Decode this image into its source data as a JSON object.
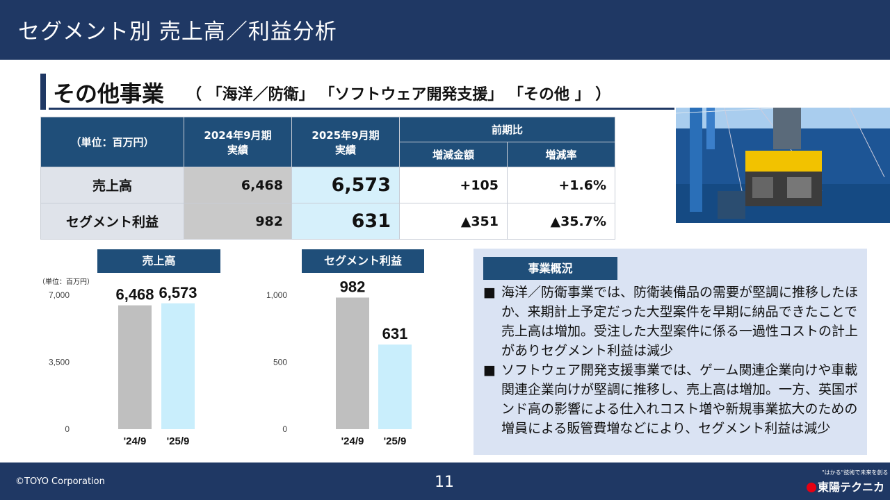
{
  "header": {
    "title": "セグメント別 売上高／利益分析"
  },
  "section": {
    "title": "その他事業",
    "subtitle": "（ 「海洋／防衛」 「ソフトウェア開発支援」 「その他 」 ）"
  },
  "table": {
    "unit": "（単位：百万円）",
    "col_2024": "2024年9月期\n実績",
    "col_2024_l1": "2024年9月期",
    "col_2024_l2": "実績",
    "col_2025_l1": "2025年9月期",
    "col_2025_l2": "実績",
    "col_yoy": "前期比",
    "col_diff": "増減金額",
    "col_rate": "増減率",
    "rows": [
      {
        "label": "売上高",
        "v2024": "6,468",
        "v2025": "6,573",
        "diff": "+105",
        "rate": "+1.6%"
      },
      {
        "label": "セグメント利益",
        "v2024": "982",
        "v2025": "631",
        "diff": "▲351",
        "rate": "▲35.7%"
      }
    ]
  },
  "chart_labels": {
    "sales": "売上高",
    "profit": "セグメント利益",
    "unit": "（単位：百万円）"
  },
  "chart_data": [
    {
      "type": "bar",
      "title": "売上高",
      "categories": [
        "'24/9",
        "'25/9"
      ],
      "values": [
        6468,
        6573
      ],
      "value_labels": [
        "6,468",
        "6,573"
      ],
      "ylim": [
        0,
        7000
      ],
      "yticks": [
        "0",
        "3,500",
        "7,000"
      ],
      "colors": [
        "#bfbfbf",
        "#c9eefc"
      ]
    },
    {
      "type": "bar",
      "title": "セグメント利益",
      "categories": [
        "'24/9",
        "'25/9"
      ],
      "values": [
        982,
        631
      ],
      "value_labels": [
        "982",
        "631"
      ],
      "ylim": [
        0,
        1000
      ],
      "yticks": [
        "0",
        "500",
        "1,000"
      ],
      "colors": [
        "#bfbfbf",
        "#c9eefc"
      ]
    }
  ],
  "summary": {
    "heading": "事業概況",
    "bullet_mark": "■",
    "bullets": [
      "海洋／防衛事業では、防衛装備品の需要が堅調に推移したほか、来期計上予定だった大型案件を早期に納品できたことで売上高は増加。受注した大型案件に係る一過性コストの計上がありセグメント利益は減少",
      "ソフトウェア開発支援事業では、ゲーム関連企業向けや車載関連企業向けが堅調に推移し、売上高は増加。一方、英国ポンド高の影響による仕入れコスト増や新規事業拡大のための増員による販管費増などにより、セグメント利益は減少"
    ]
  },
  "footer": {
    "copyright": "©TOYO Corporation",
    "page": "11",
    "logo_text": "東陽テクニカ",
    "logo_tagline": "\"はかる\"技術で未来を創る"
  },
  "colors": {
    "navy": "#1f3864",
    "table_head": "#1f4e79",
    "bar_2024": "#bfbfbf",
    "bar_2025": "#c9eefc"
  }
}
